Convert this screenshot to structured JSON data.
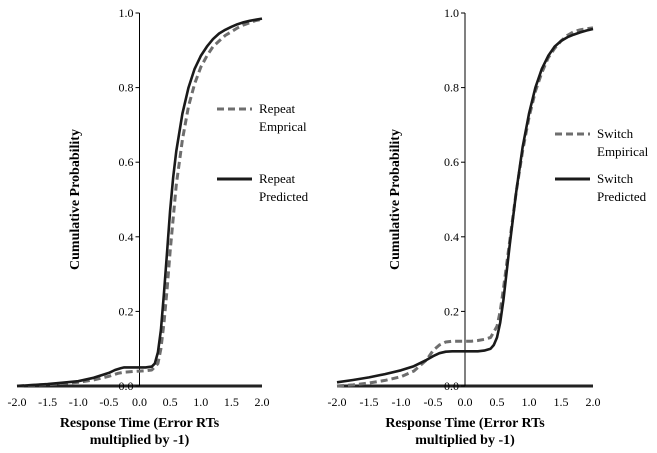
{
  "chart_data": [
    {
      "type": "line",
      "panel": "repeat",
      "xlabel": [
        "Response Time (Error RTs",
        "multiplied by -1)"
      ],
      "ylabel": "Cumulative Probability",
      "xlim": [
        -2.0,
        2.0
      ],
      "ylim": [
        0.0,
        1.0
      ],
      "x_ticks": [
        "-2.0",
        "-1.5",
        "-1.0",
        "-0.5",
        "0.0",
        "0.5",
        "1.0",
        "1.5",
        "2.0"
      ],
      "y_ticks": [
        "0.0",
        "0.2",
        "0.4",
        "0.6",
        "0.8",
        "1.0"
      ],
      "grid": false,
      "legend_position": "right",
      "series": [
        {
          "name": [
            "Repeat",
            "Emprical"
          ],
          "style": "dashed",
          "color": "#6e6e6e",
          "x": [
            -2.0,
            -1.5,
            -1.0,
            -0.75,
            -0.5,
            -0.35,
            -0.25,
            -0.1,
            0.0,
            0.1,
            0.2,
            0.3,
            0.35,
            0.4,
            0.45,
            0.5,
            0.55,
            0.6,
            0.7,
            0.8,
            0.9,
            1.0,
            1.1,
            1.2,
            1.3,
            1.4,
            1.5,
            1.6,
            1.7,
            1.8,
            1.9,
            2.0
          ],
          "y": [
            0.0,
            0.004,
            0.01,
            0.016,
            0.026,
            0.034,
            0.037,
            0.039,
            0.04,
            0.041,
            0.043,
            0.06,
            0.1,
            0.17,
            0.26,
            0.36,
            0.45,
            0.54,
            0.66,
            0.75,
            0.81,
            0.855,
            0.885,
            0.91,
            0.925,
            0.94,
            0.95,
            0.96,
            0.968,
            0.974,
            0.98,
            0.983
          ]
        },
        {
          "name": [
            "Repeat",
            "Predicted"
          ],
          "style": "solid",
          "color": "#1a1a1a",
          "x": [
            -2.0,
            -1.5,
            -1.0,
            -0.75,
            -0.5,
            -0.4,
            -0.3,
            -0.25,
            -0.1,
            0.0,
            0.1,
            0.2,
            0.25,
            0.3,
            0.35,
            0.4,
            0.45,
            0.5,
            0.55,
            0.6,
            0.7,
            0.8,
            0.9,
            1.0,
            1.1,
            1.2,
            1.3,
            1.4,
            1.5,
            1.6,
            1.7,
            1.8,
            1.9,
            2.0
          ],
          "y": [
            0.0,
            0.005,
            0.013,
            0.022,
            0.035,
            0.043,
            0.048,
            0.05,
            0.05,
            0.05,
            0.05,
            0.052,
            0.06,
            0.09,
            0.15,
            0.25,
            0.36,
            0.47,
            0.56,
            0.63,
            0.73,
            0.8,
            0.85,
            0.885,
            0.91,
            0.93,
            0.945,
            0.955,
            0.963,
            0.97,
            0.975,
            0.979,
            0.982,
            0.985
          ]
        }
      ]
    },
    {
      "type": "line",
      "panel": "switch",
      "xlabel": [
        "Response Time (Error RTs",
        "multiplied by -1)"
      ],
      "ylabel": "Cumulative Probability",
      "xlim": [
        -2.0,
        2.0
      ],
      "ylim": [
        0.0,
        1.0
      ],
      "x_ticks": [
        "-2.0",
        "-1.5",
        "-1.0",
        "-0.5",
        "0.0",
        "0.5",
        "1.0",
        "1.5",
        "2.0"
      ],
      "y_ticks": [
        "0.0",
        "0.2",
        "0.4",
        "0.6",
        "0.8",
        "1.0"
      ],
      "grid": false,
      "legend_position": "right",
      "series": [
        {
          "name": [
            "Switch",
            "Empirical"
          ],
          "style": "dashed",
          "color": "#6e6e6e",
          "x": [
            -2.0,
            -1.75,
            -1.5,
            -1.25,
            -1.0,
            -0.8,
            -0.6,
            -0.5,
            -0.4,
            -0.3,
            -0.2,
            -0.1,
            0.0,
            0.1,
            0.2,
            0.3,
            0.4,
            0.5,
            0.55,
            0.6,
            0.7,
            0.8,
            0.9,
            1.0,
            1.1,
            1.2,
            1.3,
            1.4,
            1.5,
            1.6,
            1.7,
            1.8,
            1.9,
            2.0
          ],
          "y": [
            0.0,
            0.003,
            0.008,
            0.015,
            0.025,
            0.04,
            0.07,
            0.095,
            0.11,
            0.118,
            0.12,
            0.12,
            0.12,
            0.12,
            0.122,
            0.125,
            0.13,
            0.16,
            0.2,
            0.26,
            0.39,
            0.52,
            0.63,
            0.72,
            0.79,
            0.84,
            0.88,
            0.905,
            0.925,
            0.94,
            0.95,
            0.955,
            0.958,
            0.96
          ]
        },
        {
          "name": [
            "Switch",
            "Predicted"
          ],
          "style": "solid",
          "color": "#1a1a1a",
          "x": [
            -2.0,
            -1.75,
            -1.5,
            -1.25,
            -1.0,
            -0.8,
            -0.6,
            -0.5,
            -0.4,
            -0.3,
            -0.2,
            -0.1,
            0.0,
            0.1,
            0.2,
            0.3,
            0.4,
            0.45,
            0.5,
            0.55,
            0.6,
            0.7,
            0.8,
            0.9,
            1.0,
            1.1,
            1.2,
            1.3,
            1.4,
            1.5,
            1.6,
            1.7,
            1.8,
            1.9,
            2.0
          ],
          "y": [
            0.01,
            0.016,
            0.023,
            0.032,
            0.042,
            0.053,
            0.07,
            0.08,
            0.088,
            0.092,
            0.093,
            0.093,
            0.093,
            0.093,
            0.093,
            0.095,
            0.1,
            0.11,
            0.13,
            0.17,
            0.23,
            0.38,
            0.52,
            0.64,
            0.73,
            0.8,
            0.85,
            0.885,
            0.91,
            0.925,
            0.935,
            0.942,
            0.948,
            0.953,
            0.957
          ]
        }
      ]
    }
  ]
}
